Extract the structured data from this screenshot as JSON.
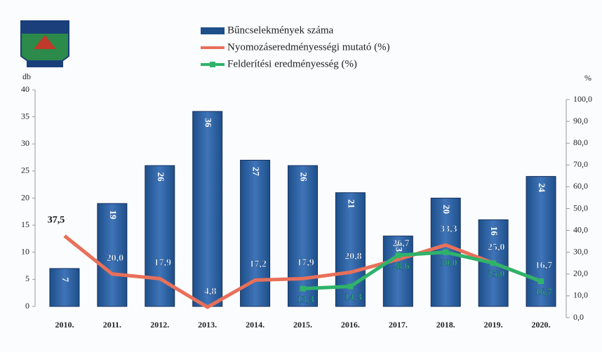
{
  "chart_data": {
    "type": "bar",
    "categories": [
      "2010.",
      "2011.",
      "2012.",
      "2013.",
      "2014.",
      "2015.",
      "2016.",
      "2017.",
      "2018.",
      "2019.",
      "2020."
    ],
    "ylabel": "db",
    "y2label": "%",
    "ylim": [
      0,
      40
    ],
    "yticks": [
      0,
      5,
      10,
      15,
      20,
      25,
      30,
      35,
      40
    ],
    "y2lim": [
      0,
      100
    ],
    "y2ticks": [
      {
        "value": 0,
        "label": "0,0"
      },
      {
        "value": 10,
        "label": "10,0"
      },
      {
        "value": 20,
        "label": "20,0"
      },
      {
        "value": 30,
        "label": "30,0"
      },
      {
        "value": 40,
        "label": "40,0"
      },
      {
        "value": 50,
        "label": "50,0"
      },
      {
        "value": 60,
        "label": "60,0"
      },
      {
        "value": 70,
        "label": "70,0"
      },
      {
        "value": 80,
        "label": "80,0"
      },
      {
        "value": 90,
        "label": "90,0"
      },
      {
        "value": 100,
        "label": "100,0"
      }
    ],
    "series": [
      {
        "name": "Bűncselekmények száma",
        "type": "bar",
        "color": "#1e4f8a",
        "values": [
          7,
          19,
          26,
          36,
          27,
          26,
          21,
          13,
          20,
          16,
          24
        ]
      },
      {
        "name": "Nyomozáseredményességi mutató (%)",
        "type": "line",
        "axis": "y2",
        "color": "#e8705a",
        "values": [
          37.5,
          20.0,
          17.9,
          4.8,
          17.2,
          17.9,
          20.8,
          26.7,
          33.3,
          25.0,
          16.7
        ],
        "value_labels": [
          "37,5",
          "20,0",
          "17,9",
          "4,8",
          "17,2",
          "17,9",
          "20,8",
          "26,7",
          "33,3",
          "25,0",
          "16,7"
        ]
      },
      {
        "name": "Felderítési eredményesség (%)",
        "type": "line",
        "axis": "y2",
        "color": "#2fb36a",
        "values": [
          null,
          null,
          null,
          null,
          null,
          13.3,
          14.3,
          28.6,
          30.0,
          25.0,
          16.7
        ],
        "value_labels": [
          null,
          null,
          null,
          null,
          null,
          "13,3",
          "14,3",
          "28,6",
          "30,0",
          "25,0",
          "16,7"
        ]
      }
    ]
  }
}
